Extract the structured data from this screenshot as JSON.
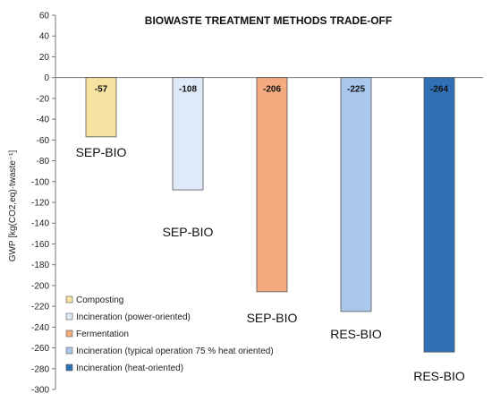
{
  "chart_data": {
    "type": "bar",
    "title": "BIOWASTE TREATMENT METHODS TRADE-OFF",
    "ylabel": "GWP [kg(CO2,eq)·twaste⁻¹]",
    "ylim": [
      -300,
      60
    ],
    "ytick_step": 20,
    "categories": [
      "SEP-BIO",
      "SEP-BIO",
      "SEP-BIO",
      "RES-BIO",
      "RES-BIO"
    ],
    "series": [
      {
        "name": "Composting",
        "value": -57,
        "color": "#f7e3a1"
      },
      {
        "name": "Incineration (power-oriented)",
        "value": -108,
        "color": "#deeaf8"
      },
      {
        "name": "Fermentation",
        "value": -206,
        "color": "#f3aa7e"
      },
      {
        "name": "Incineration (typical operation 75 % heat oriented)",
        "value": -225,
        "color": "#a9c8ec"
      },
      {
        "name": "Incineration (heat-oriented)",
        "value": -264,
        "color": "#2f6fb5"
      }
    ],
    "values": [
      -57,
      -108,
      -206,
      -225,
      -264
    ],
    "data_labels": [
      "-57",
      "-108",
      "-206",
      "-225",
      "-264"
    ],
    "legend_position": "bottom-left",
    "grid": false
  }
}
